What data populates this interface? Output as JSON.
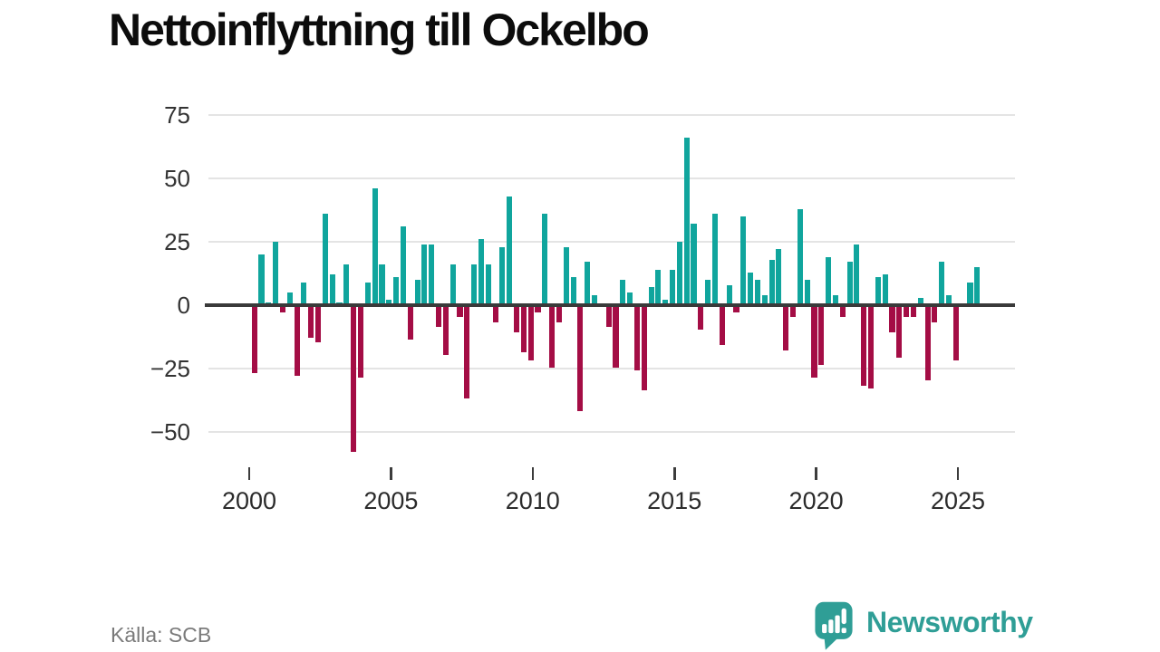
{
  "header": {
    "title": "Nettoinflyttning till Ockelbo"
  },
  "footer": {
    "source": "Källa: SCB",
    "brand": "Newsworthy",
    "brand_icon": "newsworthy-speech-bubble-bar-chart"
  },
  "colors": {
    "positive_bar": "#10a59d",
    "negative_bar": "#a40d45",
    "gridline": "#e4e4e4",
    "zero_line": "#3a3a3a",
    "axis_text": "#333333",
    "title_text": "#0c0c0c",
    "source_text": "#7a7a7a",
    "brand_teal": "#2f9e96"
  },
  "chart_data": {
    "type": "bar",
    "title": "Nettoinflyttning till Ockelbo",
    "xlabel": "",
    "ylabel": "",
    "x_frequency": "quarterly",
    "x_range": "2000Q1 to 2025Q3",
    "ylim": [
      -60,
      80
    ],
    "yticks": [
      75,
      50,
      25,
      0,
      -25,
      -50
    ],
    "xticks": [
      2000,
      2005,
      2010,
      2015,
      2020,
      2025
    ],
    "grid": "horizontal-only",
    "legend": "none",
    "series": [
      {
        "year": 2000,
        "values": [
          -26,
          20,
          1,
          25
        ]
      },
      {
        "year": 2001,
        "values": [
          -2,
          5,
          -27,
          9
        ]
      },
      {
        "year": 2002,
        "values": [
          -12,
          -14,
          36,
          12
        ]
      },
      {
        "year": 2003,
        "values": [
          1,
          16,
          -57,
          -28
        ]
      },
      {
        "year": 2004,
        "values": [
          9,
          46,
          16,
          2
        ]
      },
      {
        "year": 2005,
        "values": [
          11,
          31,
          -13,
          10
        ]
      },
      {
        "year": 2006,
        "values": [
          24,
          24,
          -8,
          -19
        ]
      },
      {
        "year": 2007,
        "values": [
          16,
          -4,
          -36,
          16
        ]
      },
      {
        "year": 2008,
        "values": [
          26,
          16,
          -6,
          23
        ]
      },
      {
        "year": 2009,
        "values": [
          43,
          -10,
          -18,
          -21
        ]
      },
      {
        "year": 2010,
        "values": [
          -2,
          36,
          -24,
          -6
        ]
      },
      {
        "year": 2011,
        "values": [
          23,
          11,
          -41,
          17
        ]
      },
      {
        "year": 2012,
        "values": [
          4,
          0,
          -8,
          -24
        ]
      },
      {
        "year": 2013,
        "values": [
          10,
          5,
          -25,
          -33
        ]
      },
      {
        "year": 2014,
        "values": [
          7,
          14,
          2,
          14
        ]
      },
      {
        "year": 2015,
        "values": [
          25,
          66,
          32,
          -9
        ]
      },
      {
        "year": 2016,
        "values": [
          10,
          36,
          -15,
          8
        ]
      },
      {
        "year": 2017,
        "values": [
          -2,
          35,
          13,
          10
        ]
      },
      {
        "year": 2018,
        "values": [
          4,
          18,
          22,
          -17
        ]
      },
      {
        "year": 2019,
        "values": [
          -4,
          38,
          10,
          -28
        ]
      },
      {
        "year": 2020,
        "values": [
          -23,
          19,
          4,
          -4
        ]
      },
      {
        "year": 2021,
        "values": [
          17,
          24,
          -31,
          -32
        ]
      },
      {
        "year": 2022,
        "values": [
          11,
          12,
          -10,
          -20
        ]
      },
      {
        "year": 2023,
        "values": [
          -4,
          -4,
          3,
          -29
        ]
      },
      {
        "year": 2024,
        "values": [
          -6,
          17,
          4,
          -21
        ]
      },
      {
        "year": 2025,
        "values": [
          0,
          9,
          15
        ]
      }
    ],
    "bar_color_positive": "#10a59d",
    "bar_color_negative": "#a40d45"
  }
}
